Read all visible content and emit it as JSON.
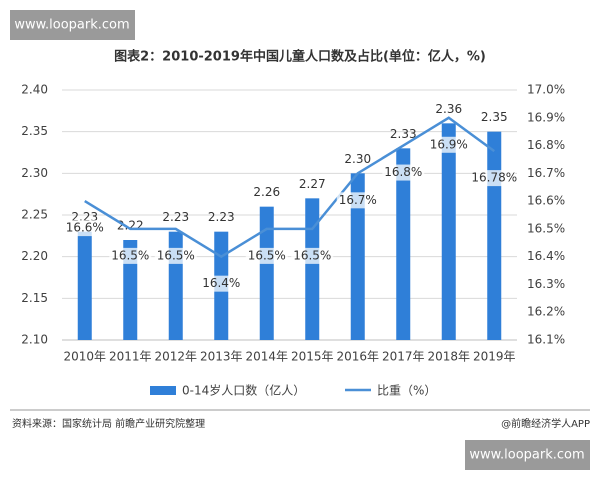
{
  "chart_data": {
    "type": "bar-line",
    "title": "图表2：2010-2019年中国儿童人口数及占比(单位：亿人，%)",
    "categories": [
      "2010年",
      "2011年",
      "2012年",
      "2013年",
      "2014年",
      "2015年",
      "2016年",
      "2017年",
      "2018年",
      "2019年"
    ],
    "series": [
      {
        "name": "0-14岁人口数（亿人）",
        "type": "bar",
        "color": "#2f7fd8",
        "values": [
          2.23,
          2.22,
          2.23,
          2.23,
          2.26,
          2.27,
          2.3,
          2.33,
          2.36,
          2.35
        ],
        "value_labels": [
          "2.23",
          "2.22",
          "2.23",
          "2.23",
          "2.26",
          "2.27",
          "2.30",
          "2.33",
          "2.36",
          "2.35"
        ]
      },
      {
        "name": "比重（%）",
        "type": "line",
        "axis": "y2",
        "color": "#4a8fd6",
        "values": [
          16.6,
          16.5,
          16.5,
          16.4,
          16.5,
          16.5,
          16.7,
          16.8,
          16.9,
          16.78
        ],
        "value_labels": [
          "16.6%",
          "16.5%",
          "16.5%",
          "16.4%",
          "16.5%",
          "16.5%",
          "16.7%",
          "16.8%",
          "16.9%",
          "16.78%"
        ]
      }
    ],
    "ylim": [
      2.1,
      2.4
    ],
    "yticks": [
      {
        "value": 2.1,
        "label": "2.10"
      },
      {
        "value": 2.15,
        "label": "2.15"
      },
      {
        "value": 2.2,
        "label": "2.20"
      },
      {
        "value": 2.25,
        "label": "2.25"
      },
      {
        "value": 2.3,
        "label": "2.30"
      },
      {
        "value": 2.35,
        "label": "2.35"
      },
      {
        "value": 2.4,
        "label": "2.40"
      }
    ],
    "y2lim": [
      16.1,
      17.0
    ],
    "y2ticks": [
      {
        "value": 16.1,
        "label": "16.1%"
      },
      {
        "value": 16.2,
        "label": "16.2%"
      },
      {
        "value": 16.3,
        "label": "16.3%"
      },
      {
        "value": 16.4,
        "label": "16.4%"
      },
      {
        "value": 16.5,
        "label": "16.5%"
      },
      {
        "value": 16.6,
        "label": "16.6%"
      },
      {
        "value": 16.7,
        "label": "16.7%"
      },
      {
        "value": 16.8,
        "label": "16.8%"
      },
      {
        "value": 16.9,
        "label": "16.9%"
      },
      {
        "value": 17.0,
        "label": "17.0%"
      }
    ],
    "grid": true,
    "source": "资料来源：国家统计局 前瞻产业研究院整理",
    "credit": "@前瞻经济学人APP"
  },
  "watermarks": [
    "www.loopark.com",
    "www.loopark.com"
  ]
}
